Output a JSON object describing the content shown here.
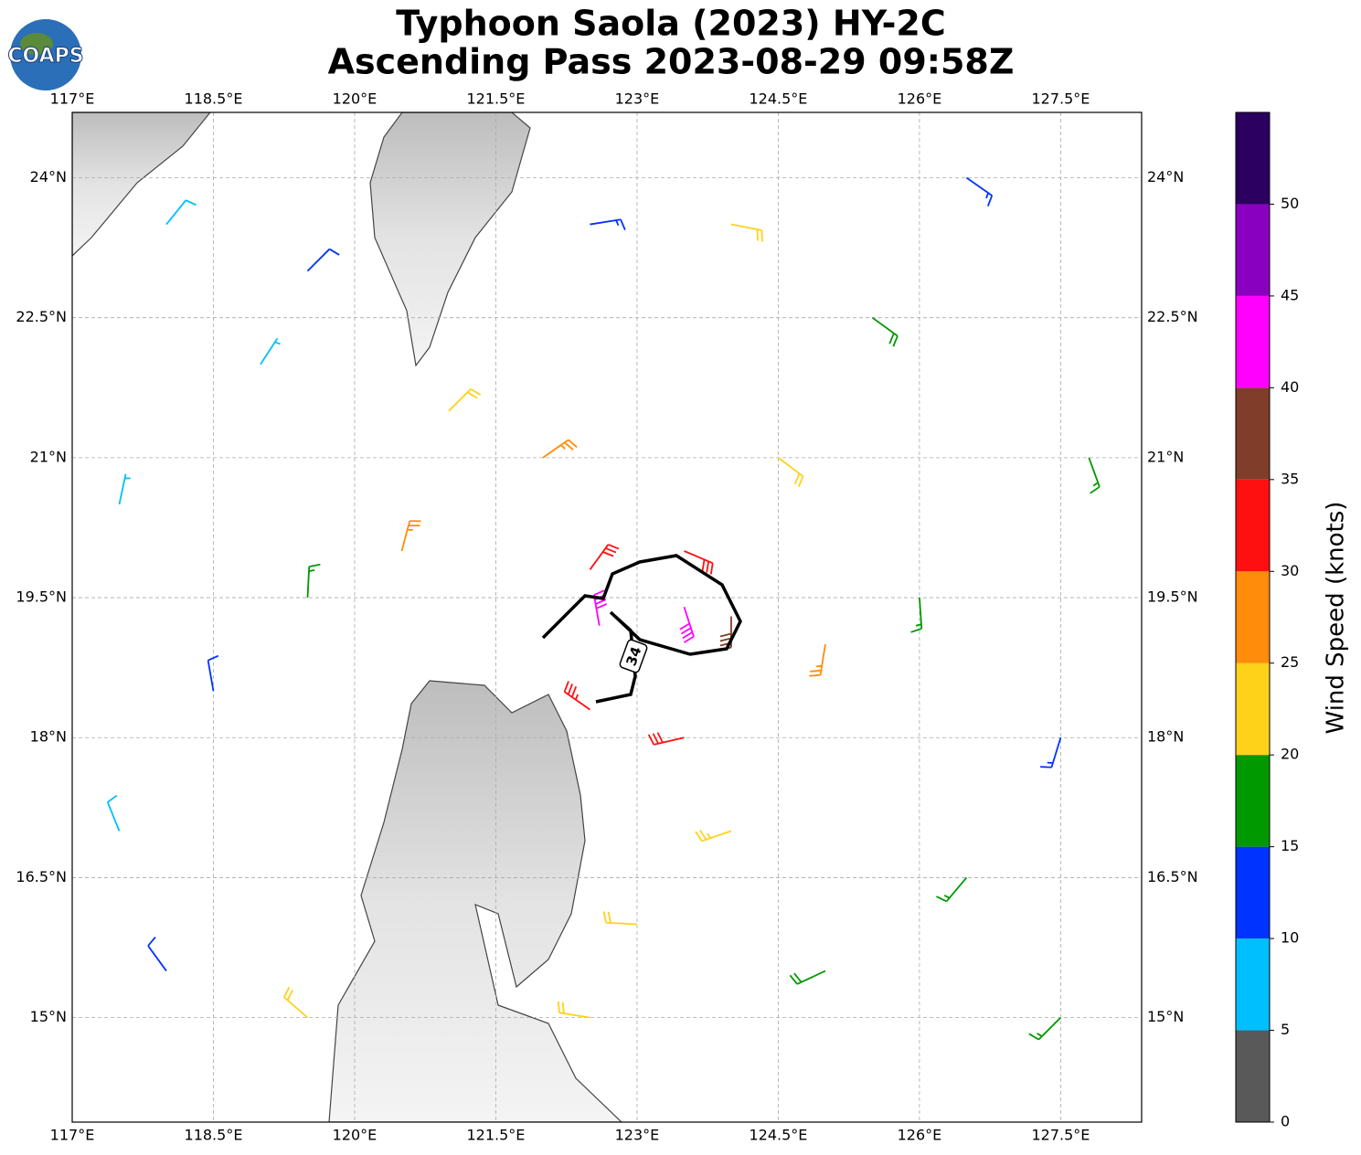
{
  "title": [
    "Typhoon Saola (2023) HY-2C",
    "Ascending Pass 2023-08-29 09:58Z"
  ],
  "logo_text": "COAPS",
  "extent": {
    "lon": [
      117,
      128.36
    ],
    "lat": [
      13.88,
      24.7
    ]
  },
  "lon_ticks": [
    {
      "value": 117,
      "label": "117°E"
    },
    {
      "value": 118.5,
      "label": "118.5°E"
    },
    {
      "value": 120,
      "label": "120°E"
    },
    {
      "value": 121.5,
      "label": "121.5°E"
    },
    {
      "value": 123,
      "label": "123°E"
    },
    {
      "value": 124.5,
      "label": "124.5°E"
    },
    {
      "value": 126,
      "label": "126°E"
    },
    {
      "value": 127.5,
      "label": "127.5°E"
    }
  ],
  "lat_ticks": [
    {
      "value": 24,
      "label": "24°N"
    },
    {
      "value": 22.5,
      "label": "22.5°N"
    },
    {
      "value": 21,
      "label": "21°N"
    },
    {
      "value": 19.5,
      "label": "19.5°N"
    },
    {
      "value": 18,
      "label": "18°N"
    },
    {
      "value": 16.5,
      "label": "16.5°N"
    },
    {
      "value": 15,
      "label": "15°N"
    }
  ],
  "contour_label": "34",
  "barbs": [
    {
      "lon": 118.0,
      "lat": 23.5,
      "speed": 8,
      "direction": 39
    },
    {
      "lon": 119.5,
      "lat": 23.0,
      "speed": 12,
      "direction": 45
    },
    {
      "lon": 121.0,
      "lat": 21.5,
      "speed": 22,
      "direction": 45
    },
    {
      "lon": 122.0,
      "lat": 21.0,
      "speed": 27,
      "direction": 55
    },
    {
      "lon": 120.5,
      "lat": 20.0,
      "speed": 26,
      "direction": 15
    },
    {
      "lon": 119.5,
      "lat": 19.5,
      "speed": 17,
      "direction": 3
    },
    {
      "lon": 118.5,
      "lat": 18.5,
      "speed": 12,
      "direction": 350
    },
    {
      "lon": 117.5,
      "lat": 17.0,
      "speed": 8,
      "direction": 338
    },
    {
      "lon": 117.5,
      "lat": 20.5,
      "speed": 7,
      "direction": 12
    },
    {
      "lon": 118.0,
      "lat": 15.5,
      "speed": 12,
      "direction": 324
    },
    {
      "lon": 119.5,
      "lat": 15.0,
      "speed": 20,
      "direction": 311
    },
    {
      "lon": 123.5,
      "lat": 18.0,
      "speed": 32,
      "direction": 257
    },
    {
      "lon": 124.0,
      "lat": 17.0,
      "speed": 24,
      "direction": 251
    },
    {
      "lon": 123.0,
      "lat": 16.0,
      "speed": 22,
      "direction": 273
    },
    {
      "lon": 122.5,
      "lat": 15.0,
      "speed": 22,
      "direction": 279
    },
    {
      "lon": 125.0,
      "lat": 15.5,
      "speed": 18,
      "direction": 245
    },
    {
      "lon": 126.5,
      "lat": 16.5,
      "speed": 17,
      "direction": 220
    },
    {
      "lon": 127.5,
      "lat": 18.0,
      "speed": 14,
      "direction": 197
    },
    {
      "lon": 126.0,
      "lat": 19.5,
      "speed": 17,
      "direction": 176
    },
    {
      "lon": 125.0,
      "lat": 19.0,
      "speed": 27,
      "direction": 189
    },
    {
      "lon": 124.0,
      "lat": 19.3,
      "speed": 38,
      "direction": 180
    },
    {
      "lon": 123.5,
      "lat": 19.4,
      "speed": 42,
      "direction": 162
    },
    {
      "lon": 122.6,
      "lat": 19.2,
      "speed": 41,
      "direction": 350
    },
    {
      "lon": 122.5,
      "lat": 19.8,
      "speed": 32,
      "direction": 36
    },
    {
      "lon": 123.5,
      "lat": 20.0,
      "speed": 32,
      "direction": 113
    },
    {
      "lon": 124.5,
      "lat": 21.0,
      "speed": 22,
      "direction": 127
    },
    {
      "lon": 125.5,
      "lat": 22.5,
      "speed": 18,
      "direction": 126
    },
    {
      "lon": 124.0,
      "lat": 23.5,
      "speed": 20,
      "direction": 101
    },
    {
      "lon": 126.5,
      "lat": 24.0,
      "speed": 13,
      "direction": 125
    },
    {
      "lon": 127.8,
      "lat": 21.0,
      "speed": 15,
      "direction": 160
    },
    {
      "lon": 122.5,
      "lat": 23.5,
      "speed": 14,
      "direction": 81
    },
    {
      "lon": 127.5,
      "lat": 15.0,
      "speed": 16,
      "direction": 225
    },
    {
      "lon": 122.5,
      "lat": 18.3,
      "speed": 34,
      "direction": 305
    },
    {
      "lon": 119.0,
      "lat": 22.0,
      "speed": 7,
      "direction": 33
    }
  ],
  "colorbar": {
    "label": "Wind Speed (knots)",
    "lim": [
      0,
      55
    ],
    "bounds": [
      0,
      5,
      10,
      15,
      20,
      25,
      30,
      35,
      40,
      45,
      50,
      55
    ],
    "colors": [
      "#595959",
      "#00bfff",
      "#0033ff",
      "#009900",
      "#ffd21a",
      "#ff8c0a",
      "#ff1010",
      "#7f3d2a",
      "#ff00ff",
      "#8a00c0",
      "#2b0060"
    ],
    "ticks": [
      0,
      5,
      10,
      15,
      20,
      25,
      30,
      35,
      40,
      45,
      50
    ]
  }
}
